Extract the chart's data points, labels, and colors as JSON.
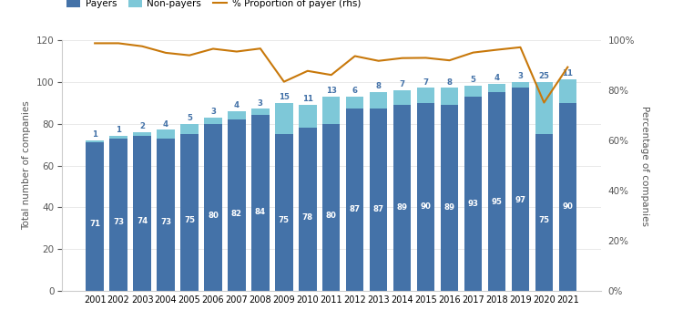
{
  "years": [
    2001,
    2002,
    2003,
    2004,
    2005,
    2006,
    2007,
    2008,
    2009,
    2010,
    2011,
    2012,
    2013,
    2014,
    2015,
    2016,
    2017,
    2018,
    2019,
    2020,
    2021
  ],
  "payers": [
    71,
    73,
    74,
    73,
    75,
    80,
    82,
    84,
    75,
    78,
    80,
    87,
    87,
    89,
    90,
    89,
    93,
    95,
    97,
    75,
    90
  ],
  "non_payers": [
    1,
    1,
    2,
    4,
    5,
    3,
    4,
    3,
    15,
    11,
    13,
    6,
    8,
    7,
    7,
    8,
    5,
    4,
    3,
    25,
    11
  ],
  "proportion": [
    0.986,
    0.986,
    0.974,
    0.948,
    0.938,
    0.964,
    0.953,
    0.965,
    0.833,
    0.876,
    0.86,
    0.935,
    0.916,
    0.927,
    0.928,
    0.918,
    0.949,
    0.96,
    0.97,
    0.75,
    0.891
  ],
  "payer_color": "#4472A8",
  "non_payer_color": "#7EC8D8",
  "line_color": "#C8780A",
  "bar_text_color_white": "#FFFFFF",
  "non_payer_text_color": "#4472A8",
  "ylabel_left": "Total number of companies",
  "ylabel_right": "Percentage of companies",
  "ylim_left": [
    0,
    120
  ],
  "ylim_right": [
    0,
    1.0
  ],
  "yticks_left": [
    0,
    20,
    40,
    60,
    80,
    100,
    120
  ],
  "yticks_right": [
    0.0,
    0.2,
    0.4,
    0.6,
    0.8,
    1.0
  ],
  "legend_labels": [
    "Payers",
    "Non-payers",
    "% Proportion of payer (rhs)"
  ],
  "figsize": [
    7.5,
    3.63
  ],
  "dpi": 100,
  "bg_color": "#FFFFFF"
}
